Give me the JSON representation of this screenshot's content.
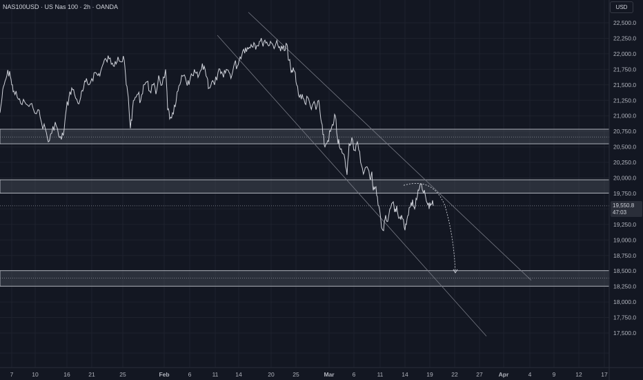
{
  "header": {
    "title": "NAS100USD · US Nas 100 · 2h · OANDA",
    "currency": "USD"
  },
  "last_price": {
    "value": "19,550.8",
    "countdown": "47:03"
  },
  "colors": {
    "background": "#131722",
    "price_line": "#d1d4dc",
    "zone_fill": "#4a4f5c",
    "grid": "#1e222d",
    "axis_text": "#b2b5be"
  },
  "chart_data": {
    "type": "line",
    "title": "NAS100USD · US Nas 100 · 2h · OANDA",
    "xlabel": "",
    "ylabel": "",
    "ylim": [
      17400,
      22620
    ],
    "x_ticks": [
      "7",
      "10",
      "16",
      "21",
      "25",
      "Feb",
      "6",
      "11",
      "14",
      "20",
      "25",
      "Mar",
      "6",
      "11",
      "14",
      "19",
      "22",
      "27",
      "Apr",
      "4",
      "9",
      "12",
      "17"
    ],
    "y_ticks": [
      "22,500.0",
      "22,250.0",
      "22,000.0",
      "21,750.0",
      "21,500.0",
      "21,250.0",
      "21,000.0",
      "20,750.0",
      "20,500.0",
      "20,250.0",
      "20,000.0",
      "19,750.0",
      "19,500.0",
      "19,250.0",
      "19,000.0",
      "18,750.0",
      "18,500.0",
      "18,250.0",
      "18,000.0",
      "17,750.0",
      "17,500.0"
    ],
    "grid": true,
    "series": [
      {
        "values": [
          {
            "x": 0,
            "y": 21050
          },
          {
            "x": 3,
            "y": 21300
          },
          {
            "x": 6,
            "y": 21500
          },
          {
            "x": 10,
            "y": 21650
          },
          {
            "x": 14,
            "y": 21720
          },
          {
            "x": 17,
            "y": 21500
          },
          {
            "x": 20,
            "y": 21400
          },
          {
            "x": 25,
            "y": 21300
          },
          {
            "x": 30,
            "y": 21200
          },
          {
            "x": 36,
            "y": 21220
          },
          {
            "x": 42,
            "y": 21150
          },
          {
            "x": 48,
            "y": 21120
          },
          {
            "x": 55,
            "y": 21100
          },
          {
            "x": 60,
            "y": 20900
          },
          {
            "x": 66,
            "y": 20780
          },
          {
            "x": 70,
            "y": 20580
          },
          {
            "x": 75,
            "y": 20720
          },
          {
            "x": 80,
            "y": 20900
          },
          {
            "x": 85,
            "y": 20680
          },
          {
            "x": 89,
            "y": 20620
          },
          {
            "x": 93,
            "y": 20780
          },
          {
            "x": 96,
            "y": 21100
          },
          {
            "x": 100,
            "y": 21300
          },
          {
            "x": 104,
            "y": 21450
          },
          {
            "x": 108,
            "y": 21350
          },
          {
            "x": 113,
            "y": 21200
          },
          {
            "x": 117,
            "y": 21300
          },
          {
            "x": 120,
            "y": 21400
          },
          {
            "x": 124,
            "y": 21550
          },
          {
            "x": 128,
            "y": 21500
          },
          {
            "x": 133,
            "y": 21600
          },
          {
            "x": 138,
            "y": 21700
          },
          {
            "x": 142,
            "y": 21650
          },
          {
            "x": 146,
            "y": 21720
          },
          {
            "x": 150,
            "y": 21850
          },
          {
            "x": 154,
            "y": 21900
          },
          {
            "x": 158,
            "y": 21920
          },
          {
            "x": 163,
            "y": 21850
          },
          {
            "x": 167,
            "y": 21880
          },
          {
            "x": 171,
            "y": 21950
          },
          {
            "x": 176,
            "y": 21870
          },
          {
            "x": 180,
            "y": 21900
          },
          {
            "x": 183,
            "y": 21500
          },
          {
            "x": 186,
            "y": 21300
          },
          {
            "x": 189,
            "y": 20800
          },
          {
            "x": 192,
            "y": 21100
          },
          {
            "x": 196,
            "y": 21300
          },
          {
            "x": 200,
            "y": 21350
          },
          {
            "x": 204,
            "y": 21250
          },
          {
            "x": 208,
            "y": 21500
          },
          {
            "x": 213,
            "y": 21550
          },
          {
            "x": 217,
            "y": 21400
          },
          {
            "x": 222,
            "y": 21500
          },
          {
            "x": 226,
            "y": 21350
          },
          {
            "x": 230,
            "y": 21650
          },
          {
            "x": 235,
            "y": 21500
          },
          {
            "x": 240,
            "y": 21750
          },
          {
            "x": 243,
            "y": 21100
          },
          {
            "x": 246,
            "y": 20950
          },
          {
            "x": 250,
            "y": 21050
          },
          {
            "x": 254,
            "y": 21150
          },
          {
            "x": 258,
            "y": 21400
          },
          {
            "x": 262,
            "y": 21550
          },
          {
            "x": 266,
            "y": 21650
          },
          {
            "x": 270,
            "y": 21550
          },
          {
            "x": 274,
            "y": 21500
          },
          {
            "x": 279,
            "y": 21650
          },
          {
            "x": 283,
            "y": 21700
          },
          {
            "x": 287,
            "y": 21620
          },
          {
            "x": 292,
            "y": 21750
          },
          {
            "x": 296,
            "y": 21800
          },
          {
            "x": 300,
            "y": 21620
          },
          {
            "x": 303,
            "y": 21450
          },
          {
            "x": 307,
            "y": 21550
          },
          {
            "x": 311,
            "y": 21500
          },
          {
            "x": 316,
            "y": 21700
          },
          {
            "x": 320,
            "y": 21680
          },
          {
            "x": 324,
            "y": 21620
          },
          {
            "x": 328,
            "y": 21750
          },
          {
            "x": 332,
            "y": 21700
          },
          {
            "x": 336,
            "y": 21650
          },
          {
            "x": 340,
            "y": 21850
          },
          {
            "x": 344,
            "y": 21800
          },
          {
            "x": 348,
            "y": 21950
          },
          {
            "x": 352,
            "y": 22050
          },
          {
            "x": 356,
            "y": 22100
          },
          {
            "x": 360,
            "y": 22080
          },
          {
            "x": 364,
            "y": 22150
          },
          {
            "x": 368,
            "y": 22180
          },
          {
            "x": 372,
            "y": 22130
          },
          {
            "x": 376,
            "y": 22200
          },
          {
            "x": 380,
            "y": 22180
          },
          {
            "x": 384,
            "y": 22220
          },
          {
            "x": 388,
            "y": 22150
          },
          {
            "x": 392,
            "y": 22200
          },
          {
            "x": 396,
            "y": 22130
          },
          {
            "x": 400,
            "y": 22170
          },
          {
            "x": 404,
            "y": 22100
          },
          {
            "x": 408,
            "y": 22130
          },
          {
            "x": 412,
            "y": 22050
          },
          {
            "x": 416,
            "y": 22150
          },
          {
            "x": 418,
            "y": 21900
          },
          {
            "x": 421,
            "y": 21800
          },
          {
            "x": 424,
            "y": 21700
          },
          {
            "x": 427,
            "y": 21720
          },
          {
            "x": 430,
            "y": 21500
          },
          {
            "x": 434,
            "y": 21300
          },
          {
            "x": 438,
            "y": 21350
          },
          {
            "x": 442,
            "y": 21200
          },
          {
            "x": 446,
            "y": 21300
          },
          {
            "x": 450,
            "y": 21150
          },
          {
            "x": 454,
            "y": 21200
          },
          {
            "x": 458,
            "y": 21100
          },
          {
            "x": 462,
            "y": 21250
          },
          {
            "x": 465,
            "y": 20950
          },
          {
            "x": 468,
            "y": 20700
          },
          {
            "x": 471,
            "y": 20500
          },
          {
            "x": 475,
            "y": 20600
          },
          {
            "x": 479,
            "y": 20750
          },
          {
            "x": 483,
            "y": 20850
          },
          {
            "x": 486,
            "y": 21000
          },
          {
            "x": 489,
            "y": 20650
          },
          {
            "x": 492,
            "y": 20500
          },
          {
            "x": 496,
            "y": 20400
          },
          {
            "x": 500,
            "y": 20300
          },
          {
            "x": 503,
            "y": 20050
          },
          {
            "x": 506,
            "y": 20550
          },
          {
            "x": 510,
            "y": 20650
          },
          {
            "x": 514,
            "y": 20450
          },
          {
            "x": 517,
            "y": 20550
          },
          {
            "x": 520,
            "y": 20450
          },
          {
            "x": 524,
            "y": 20200
          },
          {
            "x": 528,
            "y": 20100
          },
          {
            "x": 532,
            "y": 20180
          },
          {
            "x": 536,
            "y": 20000
          },
          {
            "x": 539,
            "y": 20100
          },
          {
            "x": 541,
            "y": 19800
          },
          {
            "x": 544,
            "y": 19850
          },
          {
            "x": 547,
            "y": 19700
          },
          {
            "x": 550,
            "y": 19500
          },
          {
            "x": 553,
            "y": 19200
          },
          {
            "x": 556,
            "y": 19150
          },
          {
            "x": 559,
            "y": 19400
          },
          {
            "x": 562,
            "y": 19300
          },
          {
            "x": 565,
            "y": 19500
          },
          {
            "x": 569,
            "y": 19600
          },
          {
            "x": 572,
            "y": 19450
          },
          {
            "x": 575,
            "y": 19550
          },
          {
            "x": 579,
            "y": 19350
          },
          {
            "x": 582,
            "y": 19400
          },
          {
            "x": 586,
            "y": 19200
          },
          {
            "x": 589,
            "y": 19250
          },
          {
            "x": 592,
            "y": 19400
          },
          {
            "x": 595,
            "y": 19550
          },
          {
            "x": 598,
            "y": 19650
          },
          {
            "x": 601,
            "y": 19500
          },
          {
            "x": 604,
            "y": 19650
          },
          {
            "x": 607,
            "y": 19800
          },
          {
            "x": 610,
            "y": 19900
          },
          {
            "x": 613,
            "y": 19780
          },
          {
            "x": 616,
            "y": 19750
          },
          {
            "x": 619,
            "y": 19600
          },
          {
            "x": 622,
            "y": 19500
          },
          {
            "x": 625,
            "y": 19580
          },
          {
            "x": 628,
            "y": 19550.8
          }
        ]
      }
    ],
    "zones": [
      {
        "top": 20785,
        "bottom": 20550
      },
      {
        "top": 19970,
        "bottom": 19755
      },
      {
        "top": 18505,
        "bottom": 18255
      }
    ],
    "channel_lines": [
      {
        "x1": 360,
        "y1": 22670,
        "x2": 770,
        "y2": 18350
      },
      {
        "x1": 315,
        "y1": 22300,
        "x2": 705,
        "y2": 17450
      }
    ],
    "dotted_levels": [
      20660,
      19550.8,
      18385
    ]
  }
}
